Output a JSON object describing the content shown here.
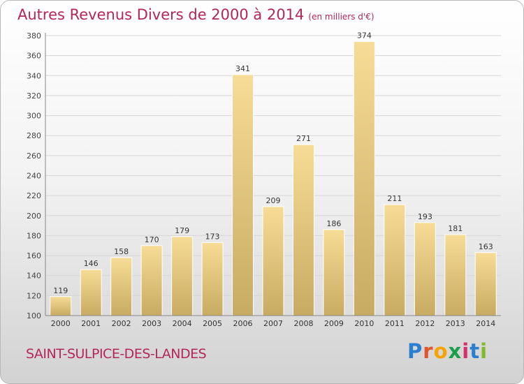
{
  "header": {
    "title": "Autres Revenus Divers de 2000 à 2014",
    "unit": "(en milliers d'€)"
  },
  "footer": {
    "city": "SAINT-SULPICE-DES-LANDES",
    "logo": "Proxiti"
  },
  "colors": {
    "accent": "#b4265a",
    "bar_light": "#f6dc96",
    "bar_dark": "#c8ab62"
  },
  "chart_data": {
    "type": "bar",
    "categories": [
      "2000",
      "2001",
      "2002",
      "2003",
      "2004",
      "2005",
      "2006",
      "2007",
      "2008",
      "2009",
      "2010",
      "2011",
      "2012",
      "2013",
      "2014"
    ],
    "values": [
      119,
      146,
      158,
      170,
      179,
      173,
      341,
      209,
      271,
      186,
      374,
      211,
      193,
      181,
      163
    ],
    "ylim": [
      100,
      380
    ],
    "yticks": [
      100,
      120,
      140,
      160,
      180,
      200,
      220,
      240,
      260,
      280,
      300,
      320,
      340,
      360,
      380
    ],
    "grid": true,
    "data_labels": true
  }
}
